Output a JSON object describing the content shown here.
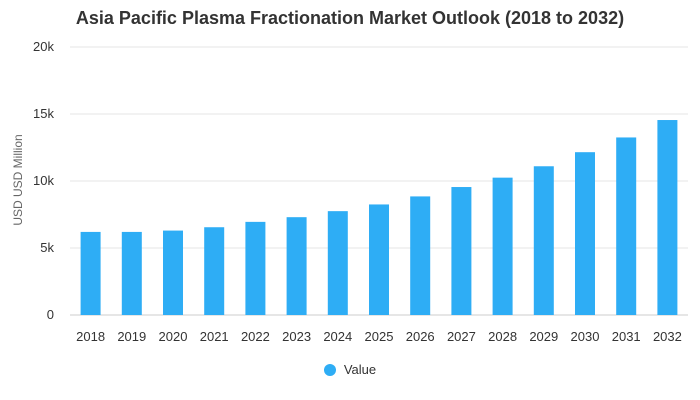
{
  "chart_data": {
    "type": "bar",
    "title": "Asia Pacific Plasma Fractionation Market Outlook (2018 to 2032)",
    "xlabel": "",
    "ylabel": "USD USD Million",
    "categories": [
      "2018",
      "2019",
      "2020",
      "2021",
      "2022",
      "2023",
      "2024",
      "2025",
      "2026",
      "2027",
      "2028",
      "2029",
      "2030",
      "2031",
      "2032"
    ],
    "series": [
      {
        "name": "Value",
        "values": [
          6200,
          6200,
          6300,
          6550,
          6950,
          7300,
          7750,
          8250,
          8850,
          9550,
          10250,
          11100,
          12150,
          13250,
          14550
        ]
      }
    ],
    "ylim": [
      0,
      20000
    ],
    "yticks": [
      0,
      5000,
      10000,
      15000,
      20000
    ],
    "ytick_labels": [
      "0",
      "5k",
      "10k",
      "15k",
      "20k"
    ],
    "grid": true,
    "legend_position": "bottom",
    "colors": {
      "bar": "#2eadf5",
      "grid": "#e6e6e6",
      "text": "#333333"
    }
  }
}
